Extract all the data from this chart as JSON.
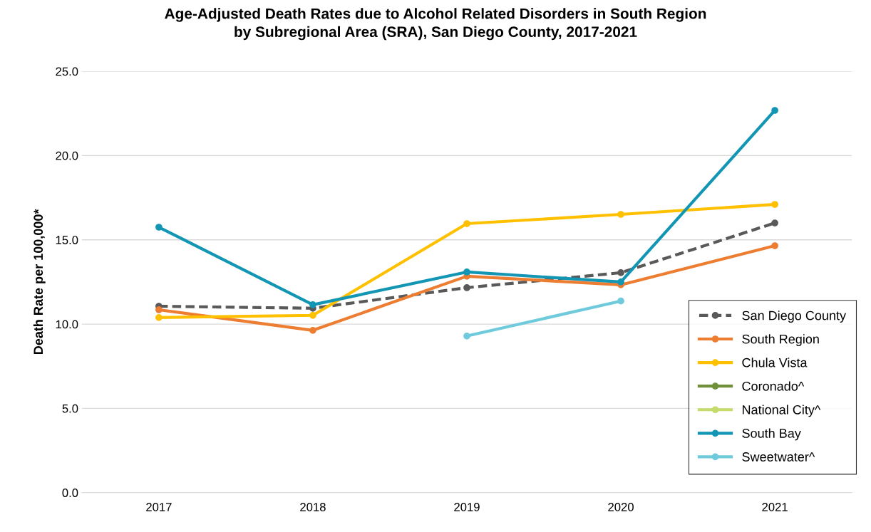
{
  "chart_data": {
    "type": "line",
    "title": "Age-Adjusted Death Rates due to Alcohol Related Disorders in South Region\nby Subregional Area (SRA), San Diego County, 2017-2021",
    "ylabel": "Death Rate per 100,000*",
    "categories": [
      "2017",
      "2018",
      "2019",
      "2020",
      "2021"
    ],
    "ylim": [
      0,
      25
    ],
    "yticks": [
      {
        "value": 0,
        "label": "0.0"
      },
      {
        "value": 5,
        "label": "5.0"
      },
      {
        "value": 10,
        "label": "10.0"
      },
      {
        "value": 15,
        "label": "15.0"
      },
      {
        "value": 20,
        "label": "20.0"
      },
      {
        "value": 25,
        "label": "25.0"
      }
    ],
    "grid": "y",
    "legend": "right",
    "marker": "circle",
    "line_style": "solid",
    "series": [
      {
        "name": "San Diego County",
        "color": "#595959",
        "line_style": "dashed",
        "values": [
          11.06,
          10.94,
          12.16,
          13.05,
          16.0
        ]
      },
      {
        "name": "South Region",
        "color": "#ed7d31",
        "values": [
          10.85,
          9.63,
          12.84,
          12.33,
          14.65
        ]
      },
      {
        "name": "Chula Vista",
        "color": "#ffc000",
        "values": [
          10.39,
          10.52,
          15.96,
          16.51,
          17.1
        ]
      },
      {
        "name": "Coronado^",
        "color": "#70913a",
        "values": [
          null,
          null,
          null,
          null,
          null
        ]
      },
      {
        "name": "National City^",
        "color": "#c5dc6a",
        "values": [
          null,
          null,
          null,
          null,
          null
        ]
      },
      {
        "name": "South Bay",
        "color": "#1396b4",
        "values": [
          15.75,
          11.15,
          13.09,
          12.5,
          22.68
        ]
      },
      {
        "name": "Sweetwater^",
        "color": "#6fcbdc",
        "values": [
          null,
          null,
          9.29,
          11.37,
          null
        ]
      }
    ]
  }
}
